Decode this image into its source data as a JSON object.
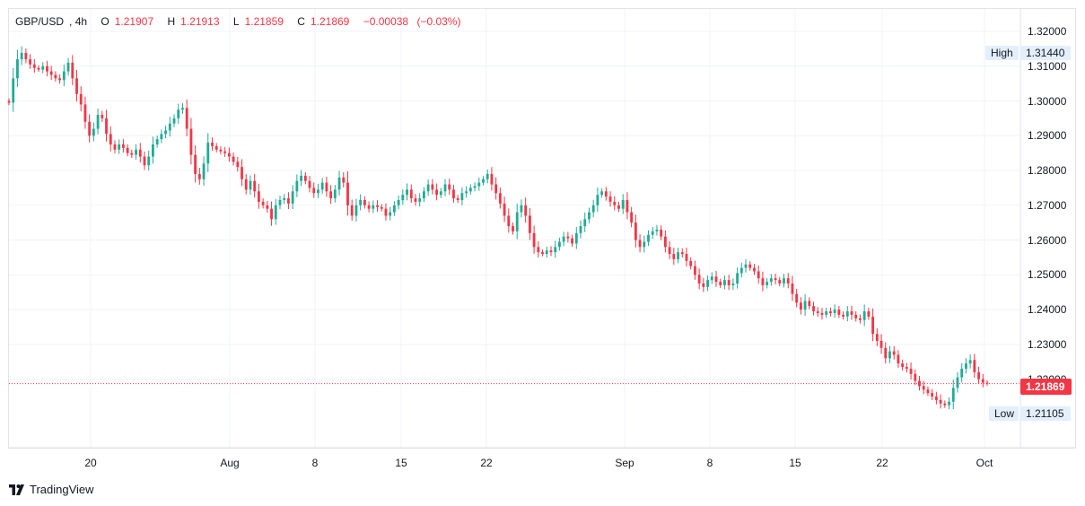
{
  "legend": {
    "symbol": "GBP/USD",
    "interval": "4h",
    "open_label": "O",
    "open": "1.21907",
    "high_label": "H",
    "high": "1.21913",
    "low_label": "L",
    "low": "1.21859",
    "close_label": "C",
    "close": "1.21869",
    "change": "−0.00038",
    "change_pct": "(−0.03%)"
  },
  "price_axis": {
    "ticks": [
      "1.32000",
      "1.31000",
      "1.30000",
      "1.29000",
      "1.28000",
      "1.27000",
      "1.26000",
      "1.25000",
      "1.24000",
      "1.23000",
      "1.22000"
    ],
    "high_label": "High",
    "high_value": "1.31440",
    "low_label": "Low",
    "low_value": "1.21105",
    "last_price": "1.21869"
  },
  "time_axis": {
    "ticks": [
      "20",
      "Aug",
      "8",
      "15",
      "22",
      "Sep",
      "8",
      "15",
      "22",
      "Oct"
    ]
  },
  "brand": "TradingView",
  "colors": {
    "up": "#22ab94",
    "down": "#f23645",
    "grid": "#f0f3fa",
    "last_price_line": "#f23645"
  },
  "chart_data": {
    "type": "candlestick",
    "symbol": "GBP/USD",
    "interval": "4h",
    "ylim": [
      1.205,
      1.3225
    ],
    "price_high": 1.3144,
    "price_low": 1.21105,
    "last_close": 1.21869,
    "x_ticks": [
      "20",
      "Aug",
      "8",
      "15",
      "22",
      "Sep",
      "8",
      "15",
      "22",
      "Oct"
    ],
    "y_ticks": [
      1.32,
      1.31,
      1.3,
      1.29,
      1.28,
      1.27,
      1.26,
      1.25,
      1.24,
      1.23,
      1.22
    ],
    "closes": [
      1.2995,
      1.3065,
      1.312,
      1.3138,
      1.312,
      1.3105,
      1.3095,
      1.309,
      1.31,
      1.3085,
      1.3075,
      1.3065,
      1.306,
      1.3085,
      1.311,
      1.3065,
      1.302,
      1.299,
      1.294,
      1.29,
      1.292,
      1.296,
      1.295,
      1.2905,
      1.2875,
      1.286,
      1.2875,
      1.2865,
      1.285,
      1.2845,
      1.286,
      1.284,
      1.2815,
      1.284,
      1.2875,
      1.289,
      1.2905,
      1.2915,
      1.2935,
      1.295,
      1.2975,
      1.298,
      1.292,
      1.2845,
      1.279,
      1.2775,
      1.282,
      1.288,
      1.287,
      1.286,
      1.2855,
      1.285,
      1.284,
      1.2825,
      1.281,
      1.2775,
      1.2745,
      1.277,
      1.274,
      1.271,
      1.27,
      1.269,
      1.266,
      1.27,
      1.2715,
      1.272,
      1.2705,
      1.274,
      1.277,
      1.2785,
      1.277,
      1.275,
      1.2735,
      1.2745,
      1.2765,
      1.274,
      1.272,
      1.2745,
      1.278,
      1.2765,
      1.27,
      1.267,
      1.27,
      1.2715,
      1.27,
      1.269,
      1.27,
      1.2695,
      1.269,
      1.267,
      1.268,
      1.27,
      1.2715,
      1.273,
      1.2745,
      1.272,
      1.271,
      1.272,
      1.274,
      1.276,
      1.2745,
      1.273,
      1.274,
      1.276,
      1.2745,
      1.272,
      1.2715,
      1.2735,
      1.274,
      1.275,
      1.2755,
      1.2765,
      1.2775,
      1.279,
      1.276,
      1.2735,
      1.2705,
      1.267,
      1.264,
      1.2625,
      1.268,
      1.27,
      1.267,
      1.262,
      1.258,
      1.2565,
      1.256,
      1.257,
      1.2565,
      1.258,
      1.2595,
      1.261,
      1.2605,
      1.259,
      1.262,
      1.264,
      1.266,
      1.268,
      1.27,
      1.273,
      1.274,
      1.2725,
      1.271,
      1.27,
      1.269,
      1.2715,
      1.268,
      1.265,
      1.26,
      1.258,
      1.2595,
      1.2615,
      1.2625,
      1.263,
      1.261,
      1.258,
      1.256,
      1.2545,
      1.2565,
      1.256,
      1.254,
      1.2525,
      1.25,
      1.2475,
      1.2465,
      1.2485,
      1.2495,
      1.248,
      1.247,
      1.2485,
      1.247,
      1.2475,
      1.2505,
      1.252,
      1.253,
      1.252,
      1.251,
      1.249,
      1.247,
      1.248,
      1.249,
      1.2485,
      1.2475,
      1.249,
      1.2475,
      1.2445,
      1.242,
      1.24,
      1.2425,
      1.241,
      1.2395,
      1.239,
      1.2385,
      1.2395,
      1.239,
      1.24,
      1.2385,
      1.238,
      1.2395,
      1.2385,
      1.2375,
      1.237,
      1.2395,
      1.238,
      1.233,
      1.231,
      1.229,
      1.226,
      1.228,
      1.227,
      1.2245,
      1.2235,
      1.223,
      1.2215,
      1.2195,
      1.218,
      1.217,
      1.216,
      1.215,
      1.214,
      1.213,
      1.2125,
      1.2135,
      1.2175,
      1.2205,
      1.223,
      1.2245,
      1.2255,
      1.222,
      1.22,
      1.219,
      1.2187
    ]
  }
}
